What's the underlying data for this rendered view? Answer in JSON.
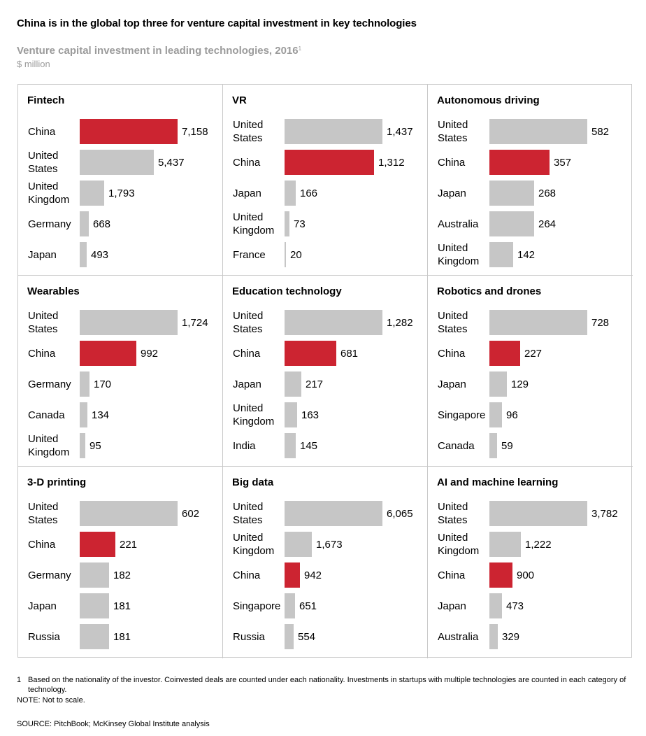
{
  "header": {
    "title": "China is in the global top three for venture capital investment in key technologies",
    "subtitle": "Venture capital investment in leading technologies, 2016",
    "subtitle_marker": "1",
    "units": "$ million"
  },
  "colors": {
    "highlight": "#cc2431",
    "bar": "#c6c6c6",
    "border": "#c8c8c8"
  },
  "chart_data": [
    {
      "type": "bar",
      "title": "Fintech",
      "categories": [
        "China",
        "United States",
        "United Kingdom",
        "Germany",
        "Japan"
      ],
      "values": [
        7158,
        5437,
        1793,
        668,
        493
      ],
      "labels": [
        "7,158",
        "5,437",
        "1,793",
        "668",
        "493"
      ],
      "highlight": 0
    },
    {
      "type": "bar",
      "title": "VR",
      "categories": [
        "United States",
        "China",
        "Japan",
        "United Kingdom",
        "France"
      ],
      "values": [
        1437,
        1312,
        166,
        73,
        20
      ],
      "labels": [
        "1,437",
        "1,312",
        "166",
        "73",
        "20"
      ],
      "highlight": 1
    },
    {
      "type": "bar",
      "title": "Autonomous driving",
      "categories": [
        "United States",
        "China",
        "Japan",
        "Australia",
        "United Kingdom"
      ],
      "values": [
        582,
        357,
        268,
        264,
        142
      ],
      "labels": [
        "582",
        "357",
        "268",
        "264",
        "142"
      ],
      "highlight": 1
    },
    {
      "type": "bar",
      "title": "Wearables",
      "categories": [
        "United States",
        "China",
        "Germany",
        "Canada",
        "United Kingdom"
      ],
      "values": [
        1724,
        992,
        170,
        134,
        95
      ],
      "labels": [
        "1,724",
        "992",
        "170",
        "134",
        "95"
      ],
      "highlight": 1
    },
    {
      "type": "bar",
      "title": "Education technology",
      "categories": [
        "United States",
        "China",
        "Japan",
        "United Kingdom",
        "India"
      ],
      "values": [
        1282,
        681,
        217,
        163,
        145
      ],
      "labels": [
        "1,282",
        "681",
        "217",
        "163",
        "145"
      ],
      "highlight": 1
    },
    {
      "type": "bar",
      "title": "Robotics and drones",
      "categories": [
        "United States",
        "China",
        "Japan",
        "Singapore",
        "Canada"
      ],
      "values": [
        728,
        227,
        129,
        96,
        59
      ],
      "labels": [
        "728",
        "227",
        "129",
        "96",
        "59"
      ],
      "highlight": 1
    },
    {
      "type": "bar",
      "title": "3-D printing",
      "categories": [
        "United States",
        "China",
        "Germany",
        "Japan",
        "Russia"
      ],
      "values": [
        602,
        221,
        182,
        181,
        181
      ],
      "labels": [
        "602",
        "221",
        "182",
        "181",
        "181"
      ],
      "highlight": 1
    },
    {
      "type": "bar",
      "title": "Big data",
      "categories": [
        "United States",
        "United Kingdom",
        "China",
        "Singapore",
        "Russia"
      ],
      "values": [
        6065,
        1673,
        942,
        651,
        554
      ],
      "labels": [
        "6,065",
        "1,673",
        "942",
        "651",
        "554"
      ],
      "highlight": 2
    },
    {
      "type": "bar",
      "title": "AI and machine learning",
      "categories": [
        "United States",
        "United Kingdom",
        "China",
        "Japan",
        "Australia"
      ],
      "values": [
        3782,
        1222,
        900,
        473,
        329
      ],
      "labels": [
        "3,782",
        "1,222",
        "900",
        "473",
        "329"
      ],
      "highlight": 2
    }
  ],
  "footnote": {
    "marker": "1",
    "text": "Based on the nationality of the investor. Coinvested deals are counted under each nationality. Investments in startups with multiple technologies are counted in each category of technology."
  },
  "note": "NOTE: Not to scale.",
  "source": "SOURCE:  PitchBook; McKinsey Global Institute analysis"
}
